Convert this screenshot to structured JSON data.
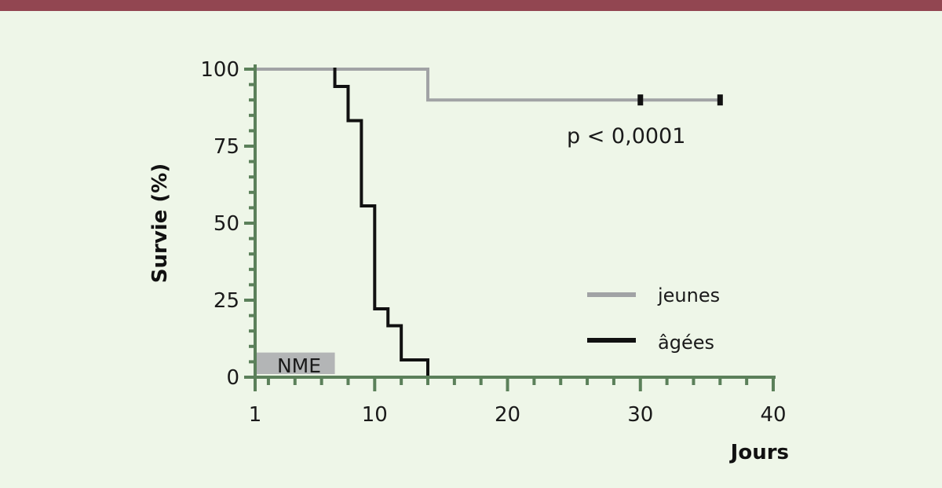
{
  "chart_data": {
    "type": "line",
    "subtype": "kaplan-meier step",
    "title": "",
    "xlabel": "Jours",
    "ylabel": "Survie (%)",
    "xlim": [
      1,
      40
    ],
    "ylim": [
      0,
      100
    ],
    "x_ticks": [
      1,
      10,
      20,
      30,
      40
    ],
    "y_ticks": [
      0,
      25,
      50,
      75,
      100
    ],
    "grid": false,
    "legend_placement": "bottom-right",
    "series": [
      {
        "name": "jeunes",
        "color": "#a1a3a5",
        "x": [
          1,
          14,
          14,
          36
        ],
        "y": [
          100,
          100,
          90,
          90
        ],
        "censored": [
          {
            "x": 30,
            "y": 90
          },
          {
            "x": 36,
            "y": 90
          }
        ]
      },
      {
        "name": "âgées",
        "color": "#111111",
        "x": [
          7,
          7,
          8,
          8,
          9,
          9,
          10,
          10,
          11,
          11,
          12,
          12,
          14,
          14
        ],
        "y": [
          100,
          94.4,
          94.4,
          83.3,
          83.3,
          55.6,
          55.6,
          22.2,
          22.2,
          16.7,
          16.7,
          5.6,
          5.6,
          0
        ],
        "censored": []
      }
    ],
    "annotations": [
      {
        "text": "p < 0,0001",
        "x": 30.5,
        "y": 77
      },
      {
        "text": "NME",
        "type": "box",
        "x_range": [
          1,
          7
        ],
        "y_range": [
          0,
          8
        ]
      }
    ]
  },
  "colors": {
    "background": "#eef6e8",
    "top_bar": "#924651",
    "axis": "#5b805a",
    "annotation_box": "#b3b5b6"
  }
}
